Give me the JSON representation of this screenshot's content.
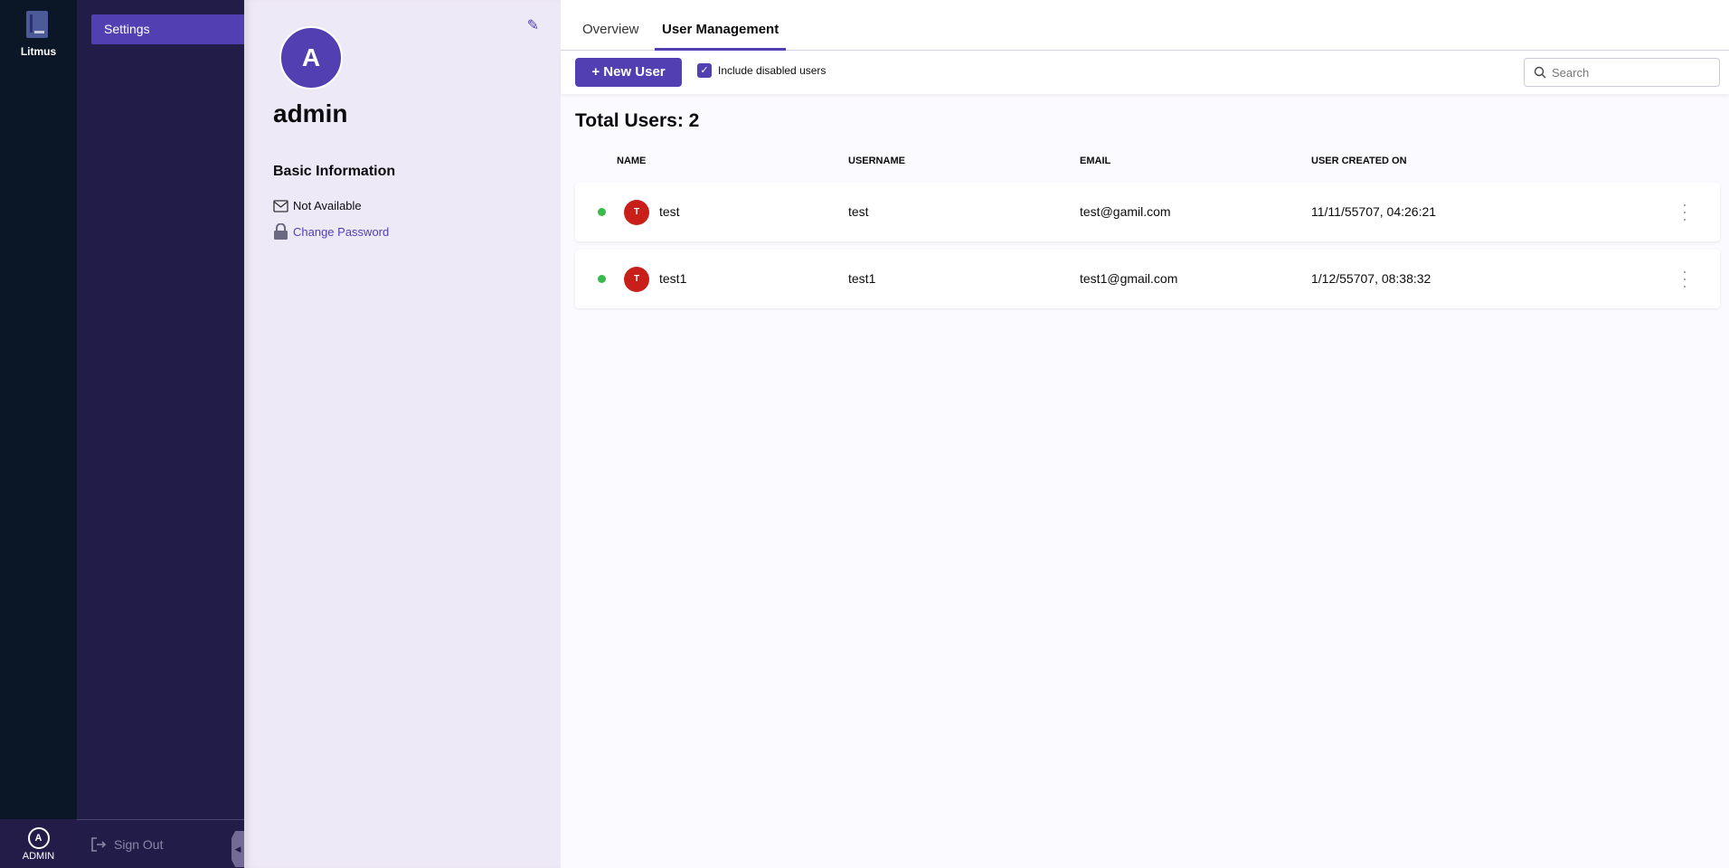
{
  "app": {
    "brand": "Litmus",
    "user_label": "ADMIN",
    "user_initial": "A"
  },
  "sidebar": {
    "items": [
      {
        "label": "Settings"
      }
    ],
    "sign_out": "Sign Out"
  },
  "profile": {
    "initial": "A",
    "name": "admin",
    "section_title": "Basic Information",
    "email": "Not Available",
    "change_password": "Change Password"
  },
  "tabs": [
    {
      "label": "Overview"
    },
    {
      "label": "User Management",
      "active": true
    }
  ],
  "toolbar": {
    "new_user": "New User",
    "include_disabled": "Include disabled users",
    "include_disabled_checked": true,
    "search_placeholder": "Search"
  },
  "users": {
    "total_label": "Total Users: 2",
    "columns": [
      "NAME",
      "USERNAME",
      "EMAIL",
      "USER CREATED ON"
    ],
    "rows": [
      {
        "initial": "T",
        "name": "test",
        "username": "test",
        "email": "test@gamil.com",
        "created": "11/11/55707, 04:26:21",
        "status": "active"
      },
      {
        "initial": "T",
        "name": "test1",
        "username": "test1",
        "email": "test1@gmail.com",
        "created": "1/12/55707, 08:38:32",
        "status": "active"
      }
    ]
  },
  "colors": {
    "accent": "#5240b3",
    "rail": "#0b1626",
    "sidebar": "#221c48",
    "active_dot": "#37bb4b",
    "avatar_red": "#c91f1b"
  }
}
